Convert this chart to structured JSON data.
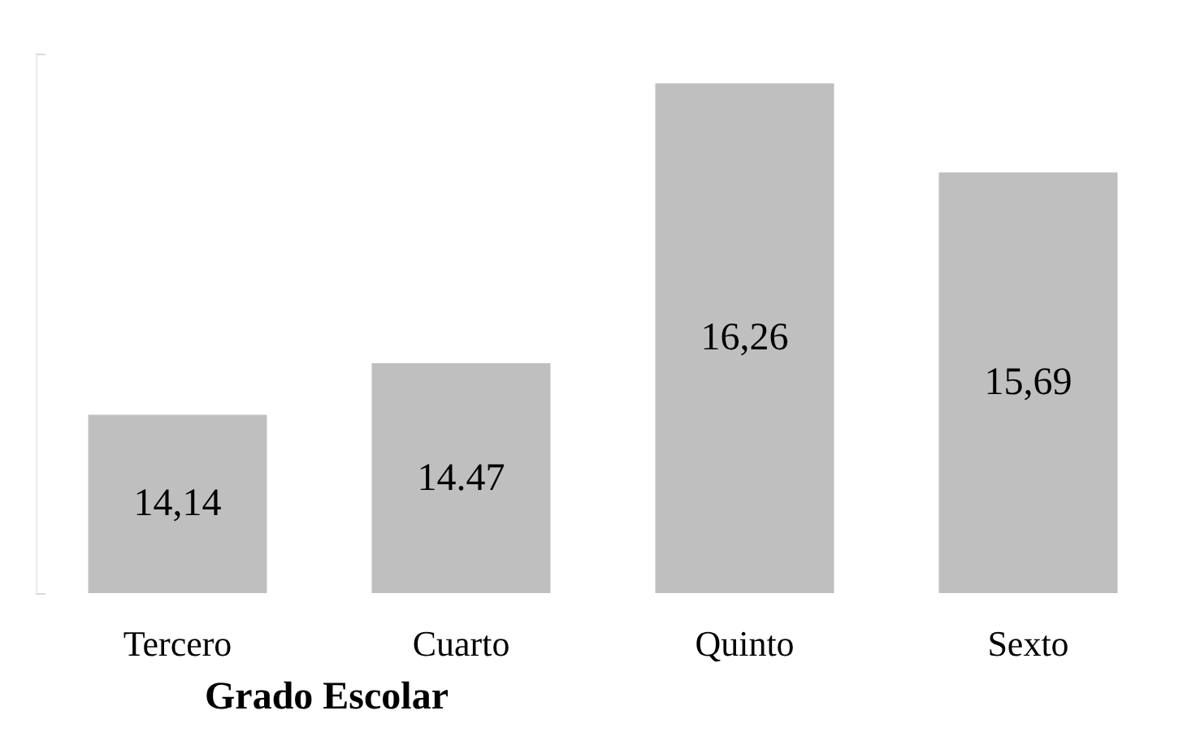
{
  "chart_data": {
    "type": "bar",
    "xlabel": "Grado Escolar",
    "categories": [
      "Tercero",
      "Cuarto",
      "Quinto",
      "Sexto"
    ],
    "values": [
      14.14,
      14.47,
      16.26,
      15.69
    ],
    "value_labels": [
      "14,14",
      "14.47",
      "16,26",
      "15,69"
    ],
    "color": "#bfbfbf",
    "ylim": [
      13,
      16.45
    ],
    "yticks": [
      {
        "value": 13,
        "label": null
      },
      {
        "value": 16.45,
        "label": null
      }
    ],
    "tick_labels": "x",
    "grid": false
  }
}
